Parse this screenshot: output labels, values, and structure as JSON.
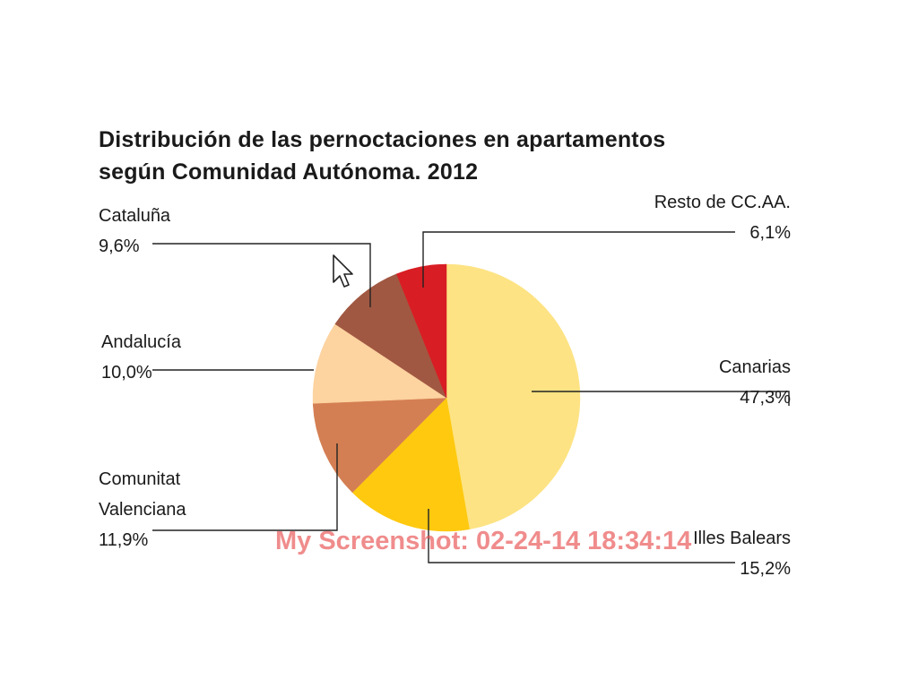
{
  "chart_data": {
    "type": "pie",
    "title_lines": [
      "Distribución de las pernoctaciones en apartamentos",
      "según Comunidad Autónoma. 2012"
    ],
    "unit": "%",
    "slices": [
      {
        "name": "Canarias",
        "name_lines": [
          "Canarias"
        ],
        "value": 47.3,
        "value_label": "47,3%",
        "color": "#fde383"
      },
      {
        "name": "Illes Balears",
        "name_lines": [
          "Illes Balears"
        ],
        "value": 15.2,
        "value_label": "15,2%",
        "color": "#fec90f"
      },
      {
        "name": "Comunitat Valenciana",
        "name_lines": [
          "Comunitat",
          "Valenciana"
        ],
        "value": 11.9,
        "value_label": "11,9%",
        "color": "#d47f53"
      },
      {
        "name": "Andalucía",
        "name_lines": [
          "Andalucía"
        ],
        "value": 10.0,
        "value_label": "10,0%",
        "color": "#fdd3a0"
      },
      {
        "name": "Cataluña",
        "name_lines": [
          "Cataluña"
        ],
        "value": 9.6,
        "value_label": "9,6%",
        "color": "#a15842"
      },
      {
        "name": "Resto de CC.AA.",
        "name_lines": [
          "Resto de CC.AA."
        ],
        "value": 6.1,
        "value_label": "6,1%",
        "color": "#d81e24"
      }
    ],
    "start": "12 o'clock",
    "direction": "clockwise",
    "legend": "none (direct leader-line labels)"
  },
  "watermark": "My Screenshot: 02-24-14 18:34:14",
  "cursor_icon": "mouse-pointer-icon"
}
